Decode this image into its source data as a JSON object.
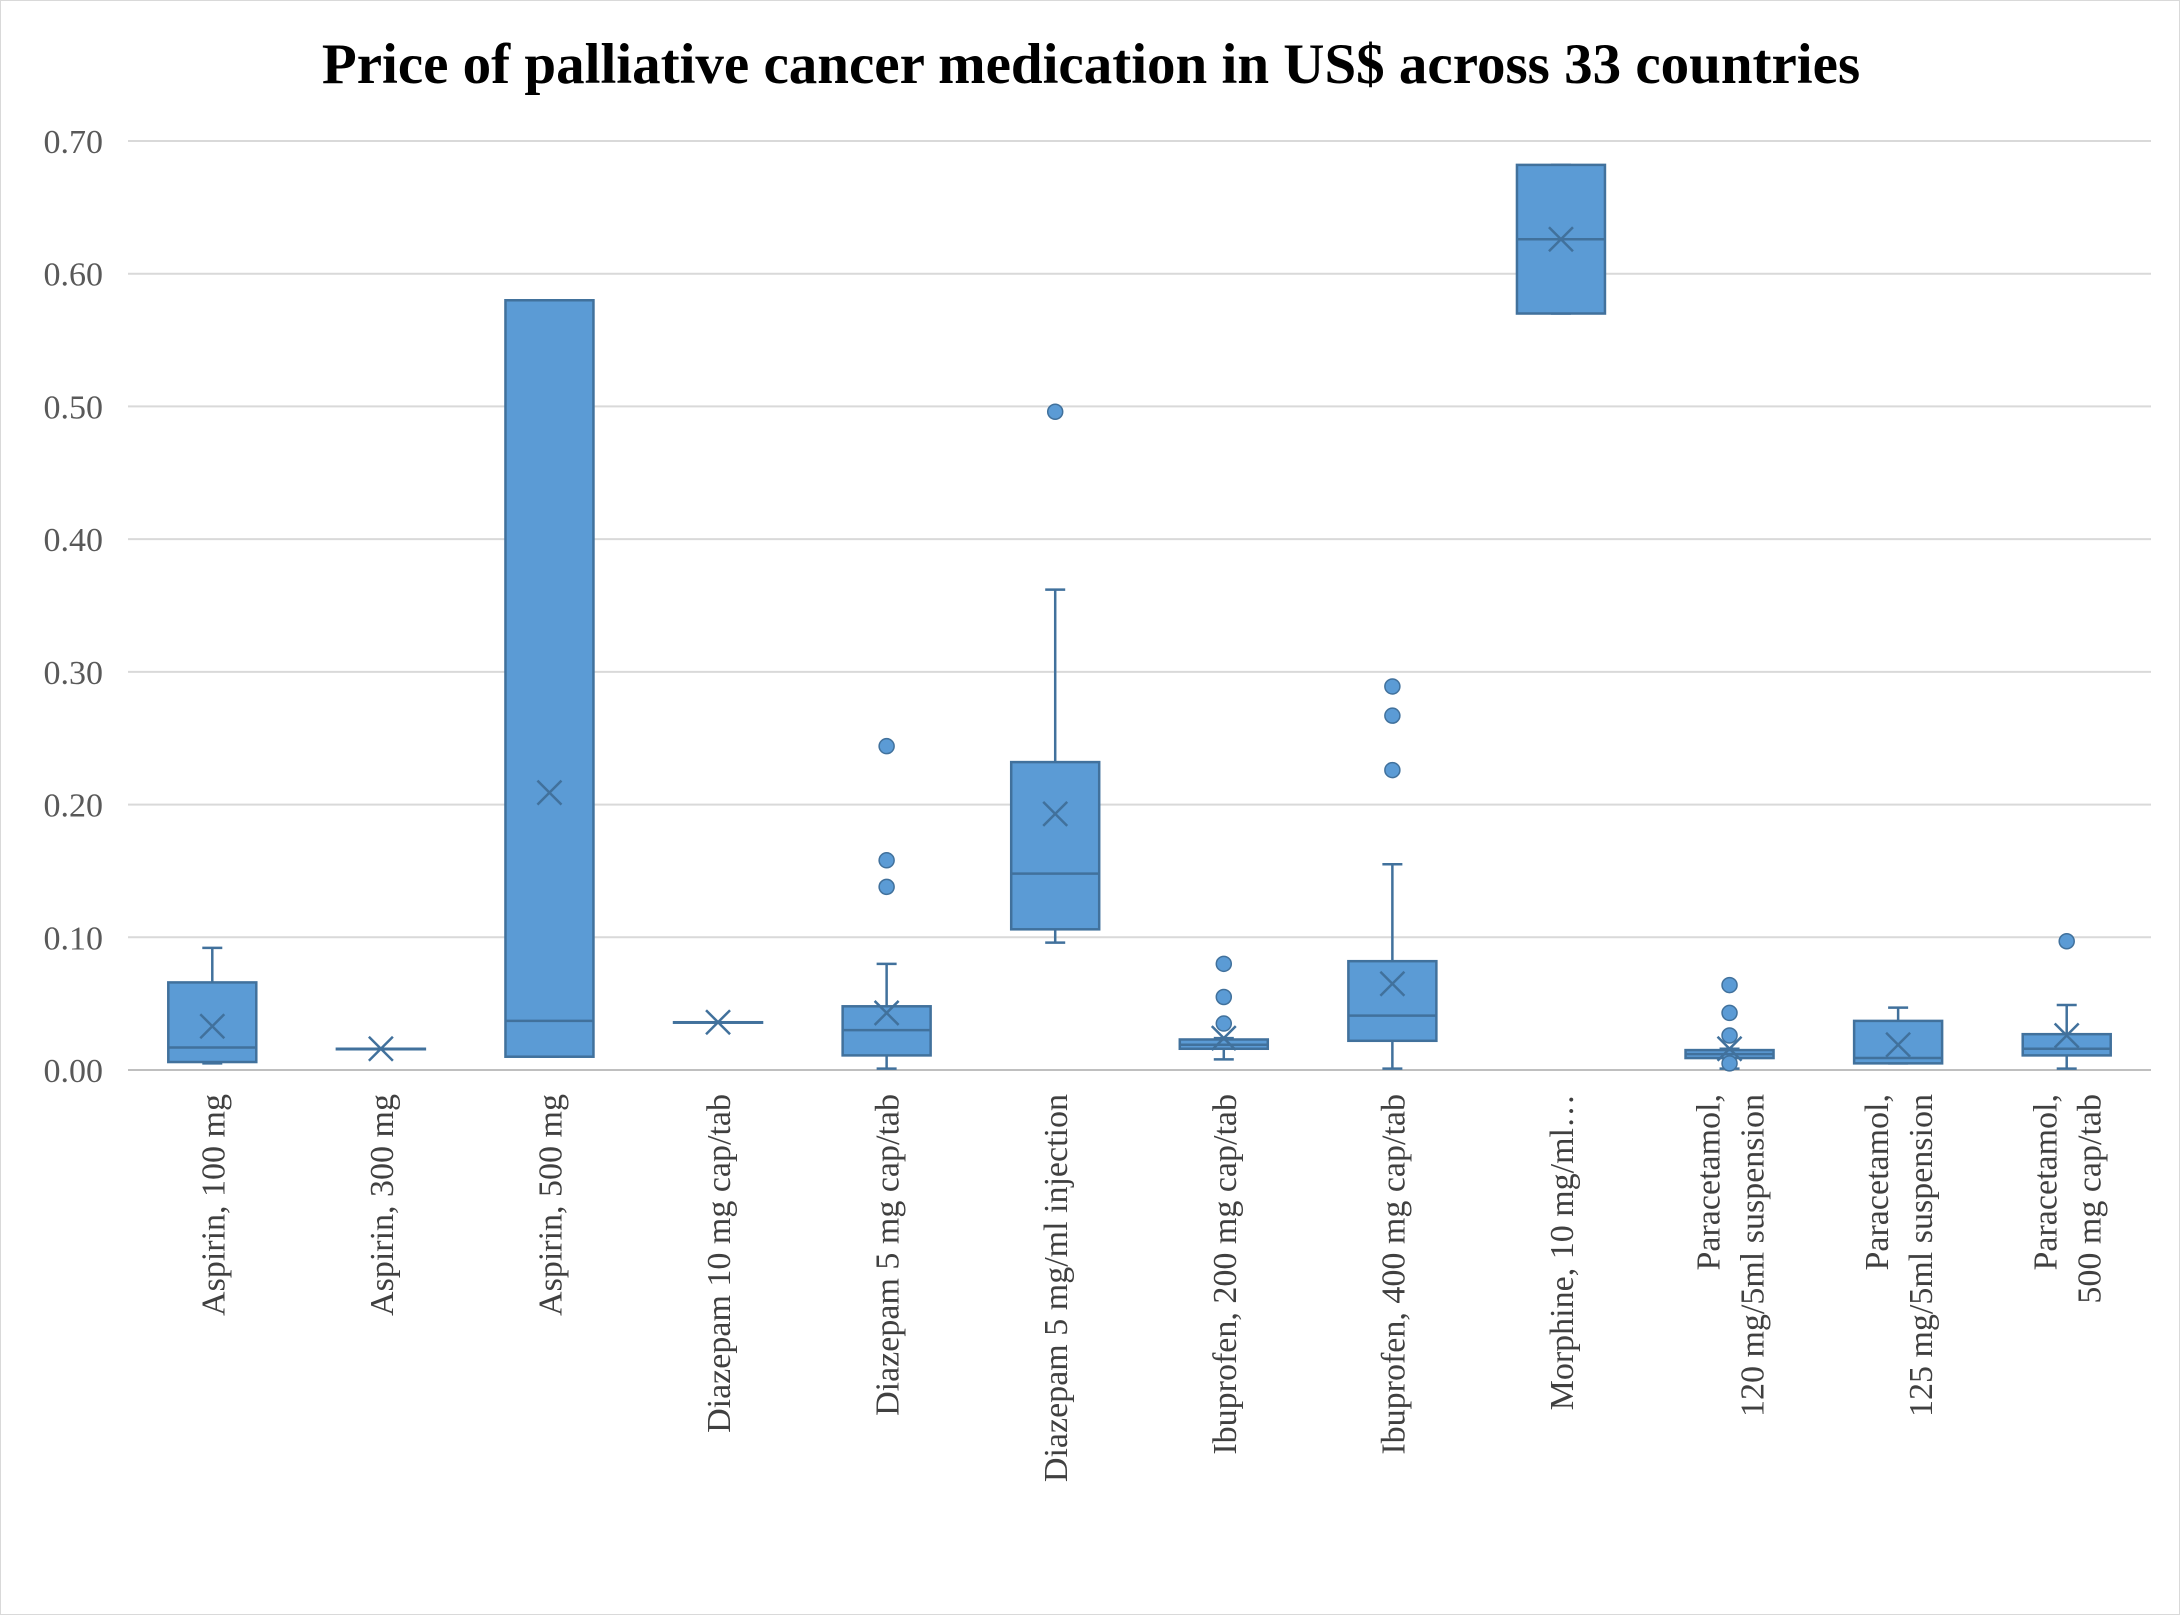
{
  "chart_data": {
    "type": "boxplot",
    "title": "Price of palliative cancer medication in US$ across 33 countries",
    "xlabel": "",
    "ylabel": "",
    "ylim": [
      0,
      0.7
    ],
    "yticks": [
      "0.00",
      "0.10",
      "0.20",
      "0.30",
      "0.40",
      "0.50",
      "0.60",
      "0.70"
    ],
    "ytick_values": [
      0,
      0.1,
      0.2,
      0.3,
      0.4,
      0.5,
      0.6,
      0.7
    ],
    "grid": true,
    "legend": "none",
    "colors": {
      "box_fill": "#5b9bd5",
      "box_stroke": "#41719c",
      "grid": "#d9d9d9",
      "axis": "#bfbfbf"
    },
    "categories": [
      {
        "label_lines": [
          "Aspirin, 100 mg"
        ],
        "min": 0.005,
        "q1": 0.006,
        "median": 0.017,
        "q3": 0.066,
        "max": 0.092,
        "mean": 0.033,
        "outliers": []
      },
      {
        "label_lines": [
          "Aspirin, 300 mg"
        ],
        "min": 0.016,
        "q1": 0.016,
        "median": 0.016,
        "q3": 0.016,
        "max": 0.016,
        "mean": 0.016,
        "outliers": []
      },
      {
        "label_lines": [
          "Aspirin, 500 mg"
        ],
        "min": 0.01,
        "q1": 0.01,
        "median": 0.037,
        "q3": 0.58,
        "max": 0.58,
        "mean": 0.209,
        "outliers": []
      },
      {
        "label_lines": [
          "Diazepam 10 mg cap/tab"
        ],
        "min": 0.036,
        "q1": 0.036,
        "median": 0.036,
        "q3": 0.036,
        "max": 0.036,
        "mean": 0.036,
        "outliers": []
      },
      {
        "label_lines": [
          "Diazepam 5 mg cap/tab"
        ],
        "min": 0.001,
        "q1": 0.011,
        "median": 0.03,
        "q3": 0.048,
        "max": 0.08,
        "mean": 0.043,
        "outliers": [
          0.138,
          0.158,
          0.244
        ]
      },
      {
        "label_lines": [
          "Diazepam 5 mg/ml injection"
        ],
        "min": 0.096,
        "q1": 0.106,
        "median": 0.148,
        "q3": 0.232,
        "max": 0.362,
        "mean": 0.193,
        "outliers": [
          0.496
        ]
      },
      {
        "label_lines": [
          "Ibuprofen, 200 mg cap/tab"
        ],
        "min": 0.008,
        "q1": 0.016,
        "median": 0.019,
        "q3": 0.023,
        "max": 0.024,
        "mean": 0.024,
        "outliers": [
          0.035,
          0.055,
          0.08
        ]
      },
      {
        "label_lines": [
          "Ibuprofen, 400 mg cap/tab"
        ],
        "min": 0.001,
        "q1": 0.022,
        "median": 0.041,
        "q3": 0.082,
        "max": 0.155,
        "mean": 0.065,
        "outliers": [
          0.226,
          0.267,
          0.289
        ]
      },
      {
        "label_lines": [
          "Morphine, 10 mg/ml…"
        ],
        "min": 0.57,
        "q1": 0.57,
        "median": 0.626,
        "q3": 0.682,
        "max": 0.682,
        "mean": 0.626,
        "outliers": []
      },
      {
        "label_lines": [
          "Paracetamol,",
          "120 mg/5ml suspension"
        ],
        "min": 0.001,
        "q1": 0.009,
        "median": 0.012,
        "q3": 0.015,
        "max": 0.016,
        "mean": 0.016,
        "outliers": [
          0.005,
          0.026,
          0.043,
          0.064
        ]
      },
      {
        "label_lines": [
          "Paracetamol,",
          "125 mg/5ml suspension"
        ],
        "min": 0.005,
        "q1": 0.005,
        "median": 0.009,
        "q3": 0.037,
        "max": 0.047,
        "mean": 0.019,
        "outliers": []
      },
      {
        "label_lines": [
          "Paracetamol,",
          "500 mg cap/tab"
        ],
        "min": 0.001,
        "q1": 0.011,
        "median": 0.016,
        "q3": 0.027,
        "max": 0.049,
        "mean": 0.026,
        "outliers": [
          0.097
        ]
      }
    ]
  }
}
